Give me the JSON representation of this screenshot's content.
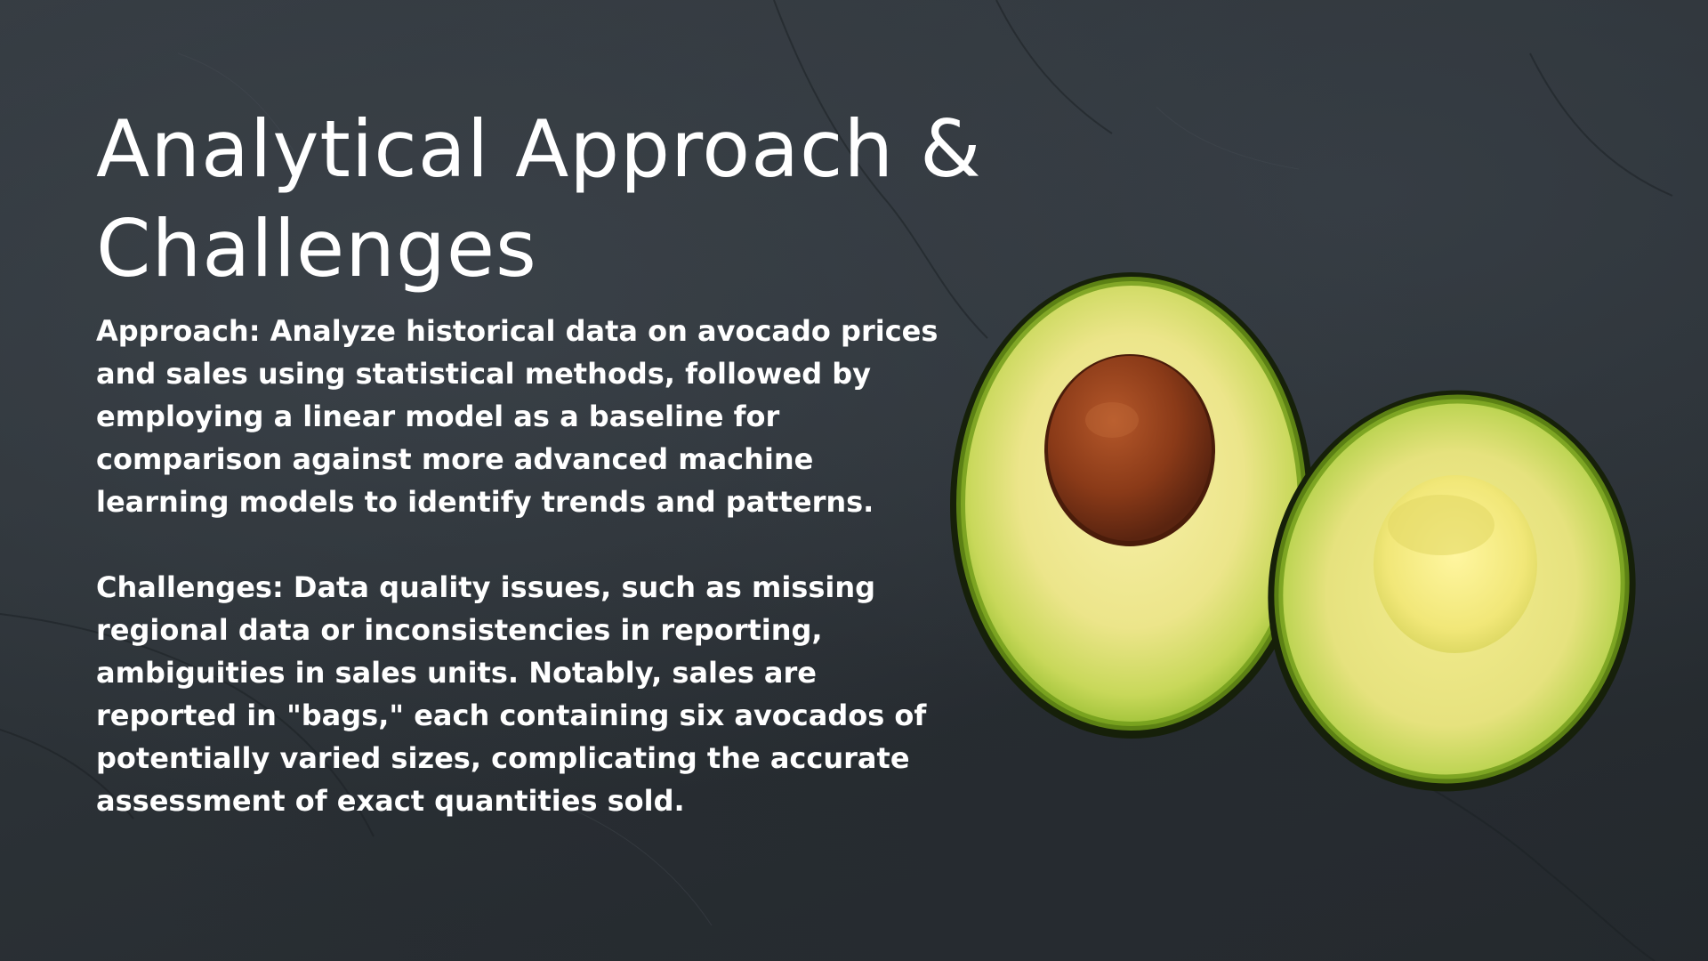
{
  "slide": {
    "title": "Analytical Approach & Challenges",
    "approach_text": "Approach: Analyze historical data on avocado prices and sales using statistical methods, followed by employing a linear model as a baseline for comparison against more advanced machine learning models to identify trends and patterns.",
    "challenges_text": "Challenges: Data quality issues, such as missing regional data or inconsistencies in reporting, ambiguities in sales units. Notably, sales are reported in \"bags,\" each containing six avocados of potentially varied sizes, complicating the accurate assessment of exact quantities sold.",
    "image_icon": "avocado-halves-image"
  },
  "colors": {
    "background": "#2b3137",
    "text": "#ffffff",
    "avocado_skin": "#1f2a12",
    "avocado_flesh_outer": "#8fbf2a",
    "avocado_flesh_inner": "#f4ec9a",
    "pit": "#7a3418"
  }
}
